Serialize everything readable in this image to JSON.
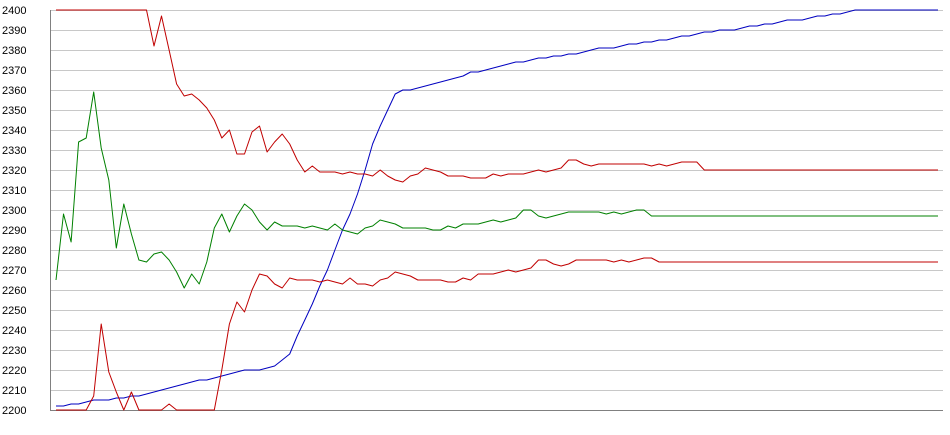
{
  "chart_data": {
    "type": "line",
    "title": "",
    "xlabel": "",
    "ylabel": "",
    "ylim": [
      2200,
      2400
    ],
    "y_ticks": [
      2200,
      2210,
      2220,
      2230,
      2240,
      2250,
      2260,
      2270,
      2280,
      2290,
      2300,
      2310,
      2320,
      2330,
      2340,
      2350,
      2360,
      2370,
      2380,
      2390,
      2400
    ],
    "x_tick_labels": "none",
    "grid": "horizontal",
    "legend": "none",
    "x": [
      0,
      1,
      2,
      3,
      4,
      5,
      6,
      7,
      8,
      9,
      10,
      11,
      12,
      13,
      14,
      15,
      16,
      17,
      18,
      19,
      20,
      21,
      22,
      23,
      24,
      25,
      26,
      27,
      28,
      29,
      30,
      31,
      32,
      33,
      34,
      35,
      36,
      37,
      38,
      39,
      40,
      41,
      42,
      43,
      44,
      45,
      46,
      47,
      48,
      49,
      50,
      51,
      52,
      53,
      54,
      55,
      56,
      57,
      58,
      59,
      60,
      61,
      62,
      63,
      64,
      65,
      66,
      67,
      68,
      69,
      70,
      71,
      72,
      73,
      74,
      75,
      76,
      77,
      78,
      79,
      80,
      81,
      82,
      83,
      84,
      85,
      86,
      87,
      88,
      89,
      90,
      91,
      92,
      93,
      94,
      95,
      96,
      97,
      98,
      99,
      100,
      101,
      102,
      103,
      104,
      105,
      106,
      107,
      108,
      109,
      110,
      111,
      112,
      113,
      114,
      115,
      116,
      117
    ],
    "series": [
      {
        "color": "#0000c0",
        "values": [
          2202,
          2202,
          2203,
          2203,
          2204,
          2205,
          2205,
          2205,
          2206,
          2206,
          2207,
          2207,
          2208,
          2209,
          2210,
          2211,
          2212,
          2213,
          2214,
          2215,
          2215,
          2216,
          2217,
          2218,
          2219,
          2220,
          2220,
          2220,
          2221,
          2222,
          2225,
          2228,
          2237,
          2245,
          2253,
          2262,
          2270,
          2280,
          2290,
          2298,
          2308,
          2320,
          2333,
          2342,
          2350,
          2358,
          2360,
          2360,
          2361,
          2362,
          2363,
          2364,
          2365,
          2366,
          2367,
          2369,
          2369,
          2370,
          2371,
          2372,
          2373,
          2374,
          2374,
          2375,
          2376,
          2376,
          2377,
          2377,
          2378,
          2378,
          2379,
          2380,
          2381,
          2381,
          2381,
          2382,
          2383,
          2383,
          2384,
          2384,
          2385,
          2385,
          2386,
          2387,
          2387,
          2388,
          2389,
          2389,
          2390,
          2390,
          2390,
          2391,
          2392,
          2392,
          2393,
          2393,
          2394,
          2395,
          2395,
          2395,
          2396,
          2397,
          2397,
          2398,
          2398,
          2399,
          2400,
          2400,
          2400,
          2400,
          2400,
          2400,
          2400,
          2400,
          2400,
          2400,
          2400,
          2400
        ]
      },
      {
        "color": "#c00000",
        "values": [
          2400,
          2400,
          2400,
          2400,
          2400,
          2400,
          2400,
          2400,
          2400,
          2400,
          2400,
          2400,
          2400,
          2382,
          2397,
          2380,
          2363,
          2357,
          2358,
          2355,
          2351,
          2345,
          2336,
          2340,
          2328,
          2328,
          2339,
          2342,
          2329,
          2334,
          2338,
          2333,
          2325,
          2319,
          2322,
          2319,
          2319,
          2319,
          2318,
          2319,
          2318,
          2318,
          2317,
          2320,
          2317,
          2315,
          2314,
          2317,
          2318,
          2321,
          2320,
          2319,
          2317,
          2317,
          2317,
          2316,
          2316,
          2316,
          2318,
          2317,
          2318,
          2318,
          2318,
          2319,
          2320,
          2319,
          2320,
          2321,
          2325,
          2325,
          2323,
          2322,
          2323,
          2323,
          2323,
          2323,
          2323,
          2323,
          2323,
          2322,
          2323,
          2322,
          2323,
          2324,
          2324,
          2324,
          2320,
          2320,
          2320,
          2320,
          2320,
          2320,
          2320,
          2320,
          2320,
          2320,
          2320,
          2320,
          2320,
          2320,
          2320,
          2320,
          2320,
          2320,
          2320,
          2320,
          2320,
          2320,
          2320,
          2320,
          2320,
          2320,
          2320,
          2320,
          2320,
          2320,
          2320,
          2320
        ]
      },
      {
        "color": "#008000",
        "values": [
          2265,
          2298,
          2284,
          2334,
          2336,
          2359,
          2331,
          2315,
          2281,
          2303,
          2288,
          2275,
          2274,
          2278,
          2279,
          2275,
          2269,
          2261,
          2268,
          2263,
          2274,
          2291,
          2298,
          2289,
          2297,
          2303,
          2300,
          2294,
          2290,
          2294,
          2292,
          2292,
          2292,
          2291,
          2292,
          2291,
          2290,
          2293,
          2290,
          2289,
          2288,
          2291,
          2292,
          2295,
          2294,
          2293,
          2291,
          2291,
          2291,
          2291,
          2290,
          2290,
          2292,
          2291,
          2293,
          2293,
          2293,
          2294,
          2295,
          2294,
          2295,
          2296,
          2300,
          2300,
          2297,
          2296,
          2297,
          2298,
          2299,
          2299,
          2299,
          2299,
          2299,
          2298,
          2299,
          2298,
          2299,
          2300,
          2300,
          2297,
          2297,
          2297,
          2297,
          2297,
          2297,
          2297,
          2297,
          2297,
          2297,
          2297,
          2297,
          2297,
          2297,
          2297,
          2297,
          2297,
          2297,
          2297,
          2297,
          2297,
          2297,
          2297,
          2297,
          2297,
          2297,
          2297,
          2297,
          2297,
          2297,
          2297,
          2297,
          2297,
          2297,
          2297,
          2297,
          2297,
          2297,
          2297
        ]
      },
      {
        "color": "#c00000",
        "values": [
          2200,
          2200,
          2200,
          2200,
          2200,
          2207,
          2243,
          2219,
          2209,
          2200,
          2209,
          2200,
          2200,
          2200,
          2200,
          2203,
          2200,
          2200,
          2200,
          2200,
          2200,
          2200,
          2220,
          2243,
          2254,
          2249,
          2260,
          2268,
          2267,
          2263,
          2261,
          2266,
          2265,
          2265,
          2265,
          2264,
          2265,
          2264,
          2263,
          2266,
          2263,
          2263,
          2262,
          2265,
          2266,
          2269,
          2268,
          2267,
          2265,
          2265,
          2265,
          2265,
          2264,
          2264,
          2266,
          2265,
          2268,
          2268,
          2268,
          2269,
          2270,
          2269,
          2270,
          2271,
          2275,
          2275,
          2273,
          2272,
          2273,
          2275,
          2275,
          2275,
          2275,
          2275,
          2274,
          2275,
          2274,
          2275,
          2276,
          2276,
          2274,
          2274,
          2274,
          2274,
          2274,
          2274,
          2274,
          2274,
          2274,
          2274,
          2274,
          2274,
          2274,
          2274,
          2274,
          2274,
          2274,
          2274,
          2274,
          2274,
          2274,
          2274,
          2274,
          2274,
          2274,
          2274,
          2274,
          2274,
          2274,
          2274,
          2274,
          2274,
          2274,
          2274,
          2274,
          2274,
          2274,
          2274
        ]
      }
    ]
  }
}
